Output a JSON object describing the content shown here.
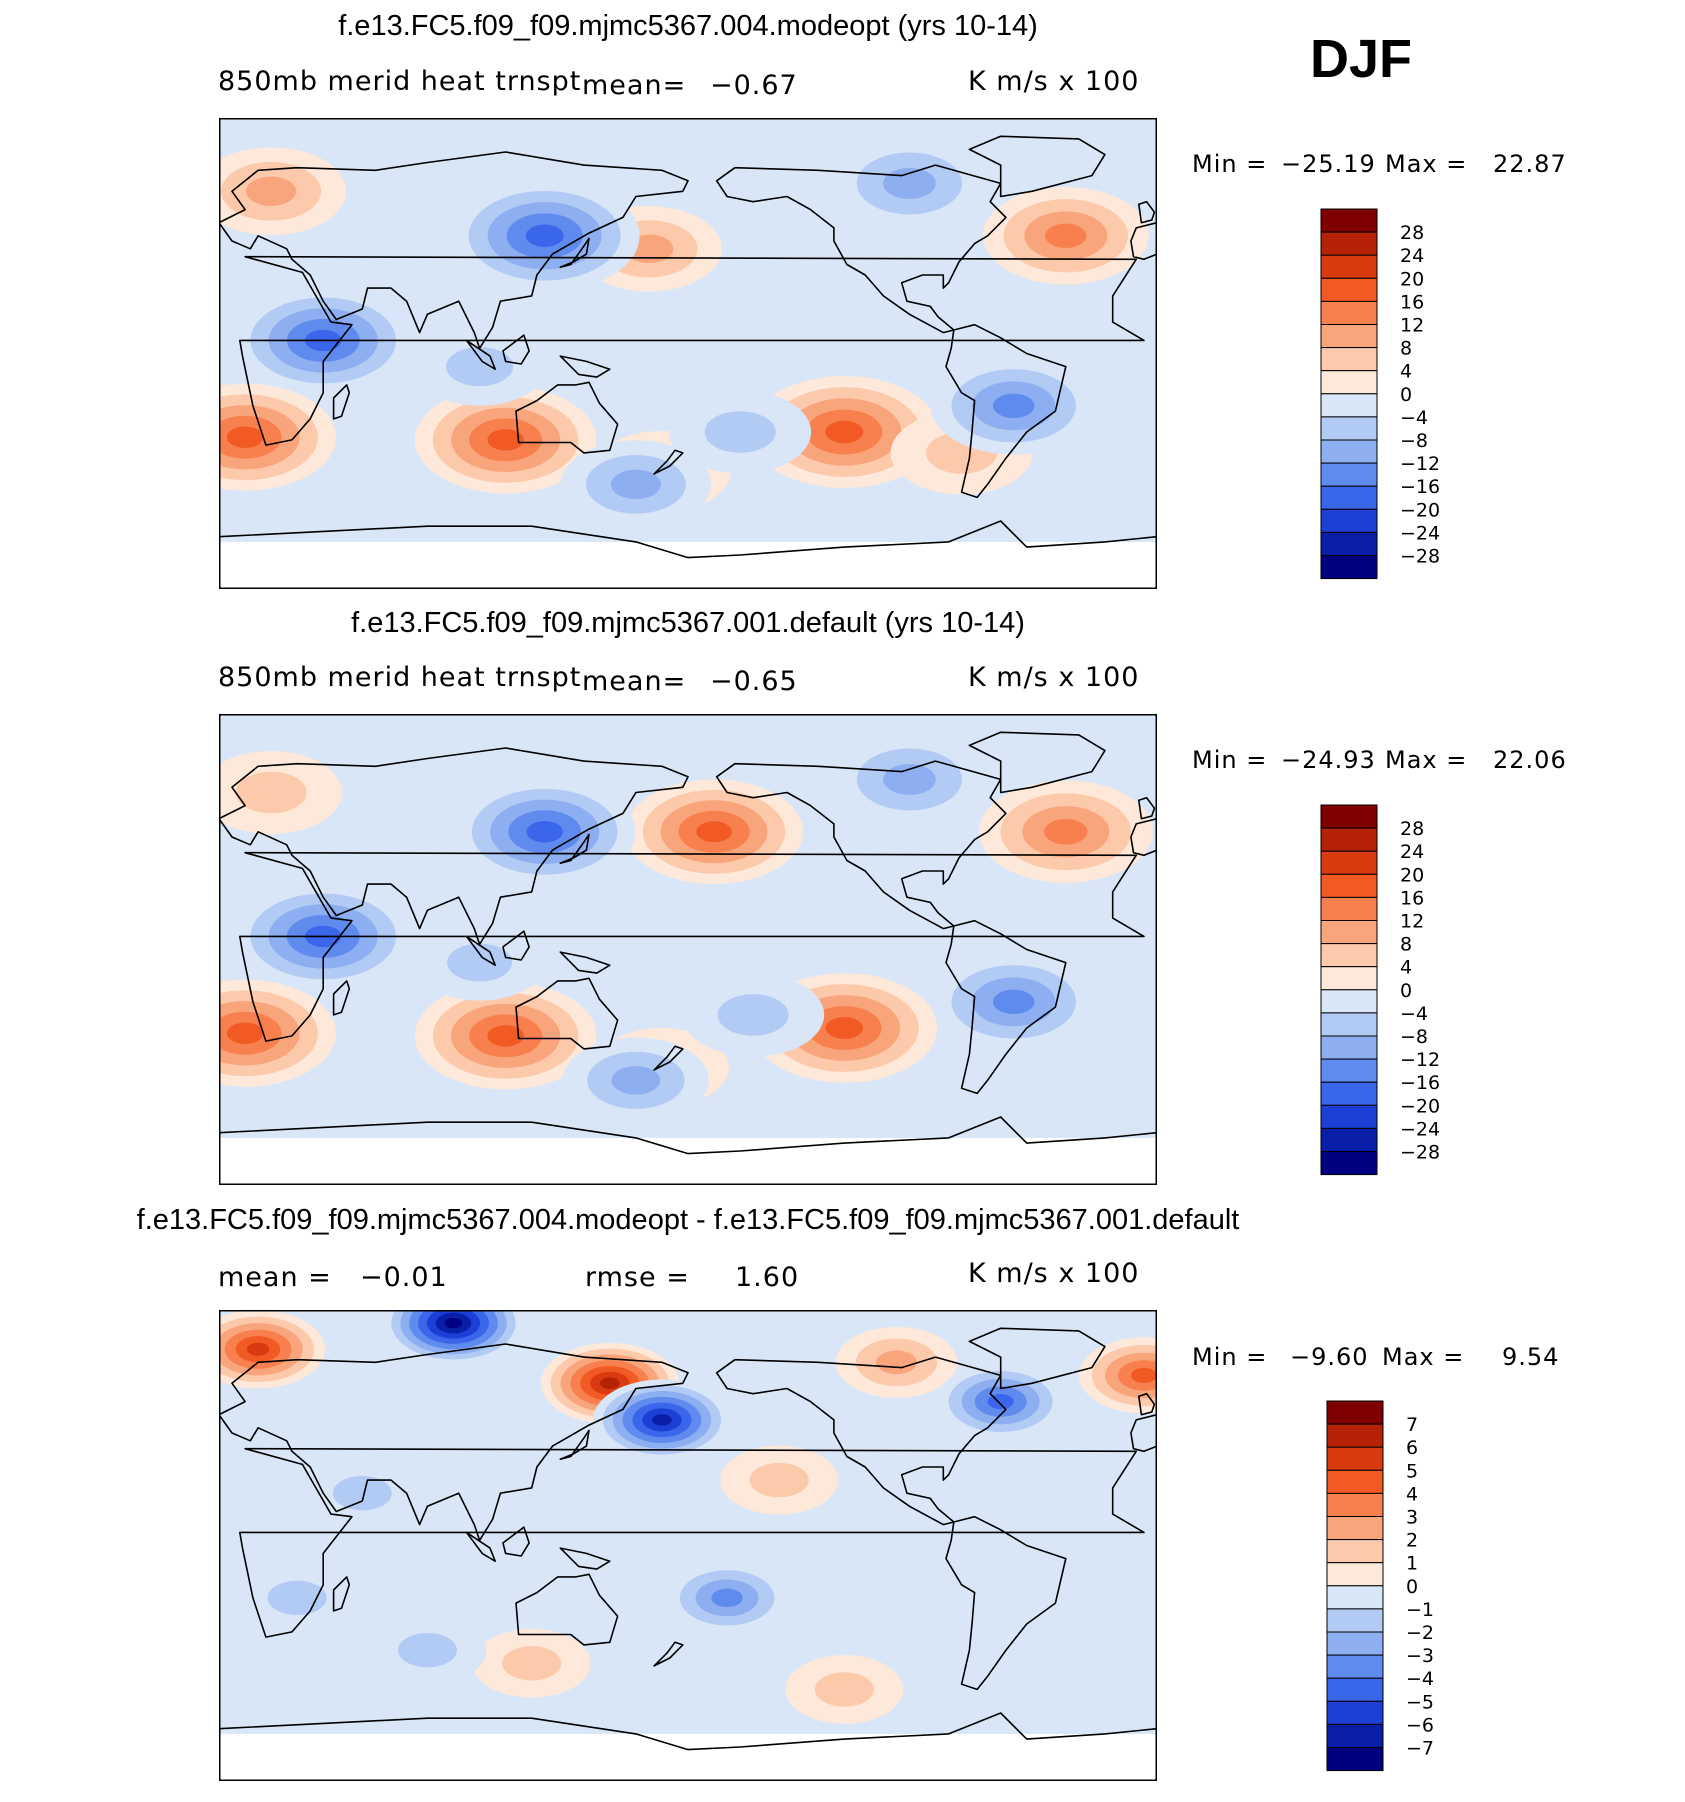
{
  "season": "DJF",
  "panels": [
    {
      "title": "f.e13.FC5.f09_f09.mjmc5367.004.modeopt (yrs 10-14)",
      "variable": "850mb merid heat trnspt",
      "mean_label": "mean=",
      "mean_value": "−0.67",
      "units": "K m/s x 100",
      "min_label": "Min =",
      "min_value": "−25.19",
      "max_label": "Max =",
      "max_value": "22.87"
    },
    {
      "title": "f.e13.FC5.f09_f09.mjmc5367.001.default (yrs 10-14)",
      "variable": "850mb merid heat trnspt",
      "mean_label": "mean=",
      "mean_value": "−0.65",
      "units": "K m/s x 100",
      "min_label": "Min =",
      "min_value": "−24.93",
      "max_label": "Max =",
      "max_value": "22.06"
    },
    {
      "title": "f.e13.FC5.f09_f09.mjmc5367.004.modeopt - f.e13.FC5.f09_f09.mjmc5367.001.default",
      "mean_label": "mean =",
      "mean_value": "−0.01",
      "rmse_label": "rmse =",
      "rmse_value": "1.60",
      "units": "K m/s x 100",
      "min_label": "Min =",
      "min_value": "−9.60",
      "max_label": "Max =",
      "max_value": "9.54"
    }
  ],
  "chart_data": [
    {
      "type": "heatmap",
      "title": "f.e13.FC5.f09_f09.mjmc5367.004.modeopt (yrs 10-14)",
      "variable": "850mb merid heat trnspt",
      "units": "K m/s x 100",
      "mean": -0.67,
      "min": -25.19,
      "max": 22.87,
      "colorbar_levels": [
        "28",
        "24",
        "20",
        "16",
        "12",
        "8",
        "4",
        "0",
        "−4",
        "−8",
        "−12",
        "−16",
        "−20",
        "−24",
        "−28"
      ],
      "colorbar_colors": [
        "#800000",
        "#b52205",
        "#d93a0f",
        "#f25a23",
        "#f8804f",
        "#f9a57c",
        "#fcc9ab",
        "#fde8d9",
        "#d8e6f8",
        "#b2cbf4",
        "#8daef0",
        "#5f8bee",
        "#3a66ec",
        "#1c3fd6",
        "#0a1fa8",
        "#000080"
      ],
      "blobs": [
        {
          "lon": 240,
          "lat": -30,
          "value": 20
        },
        {
          "lon": 110,
          "lat": -33,
          "value": 18
        },
        {
          "lon": 10,
          "lat": -32,
          "value": 18
        },
        {
          "lon": 325,
          "lat": 45,
          "value": 14
        },
        {
          "lon": 165,
          "lat": 40,
          "value": 9
        },
        {
          "lon": 170,
          "lat": -45,
          "value": 7
        },
        {
          "lon": 20,
          "lat": 62,
          "value": 10
        },
        {
          "lon": 285,
          "lat": -38,
          "value": 8
        },
        {
          "lon": 125,
          "lat": 45,
          "value": -20
        },
        {
          "lon": 40,
          "lat": 5,
          "value": -18
        },
        {
          "lon": 265,
          "lat": 65,
          "value": -12
        },
        {
          "lon": 305,
          "lat": -20,
          "value": -14
        },
        {
          "lon": 160,
          "lat": -50,
          "value": -10
        },
        {
          "lon": 200,
          "lat": -30,
          "value": -8
        },
        {
          "lon": 100,
          "lat": -5,
          "value": -6
        }
      ]
    },
    {
      "type": "heatmap",
      "title": "f.e13.FC5.f09_f09.mjmc5367.001.default (yrs 10-14)",
      "variable": "850mb merid heat trnspt",
      "units": "K m/s x 100",
      "mean": -0.65,
      "min": -24.93,
      "max": 22.06,
      "colorbar_levels": [
        "28",
        "24",
        "20",
        "16",
        "12",
        "8",
        "4",
        "0",
        "−4",
        "−8",
        "−12",
        "−16",
        "−20",
        "−24",
        "−28"
      ],
      "colorbar_colors": [
        "#800000",
        "#b52205",
        "#d93a0f",
        "#f25a23",
        "#f8804f",
        "#f9a57c",
        "#fcc9ab",
        "#fde8d9",
        "#d8e6f8",
        "#b2cbf4",
        "#8daef0",
        "#5f8bee",
        "#3a66ec",
        "#1c3fd6",
        "#0a1fa8",
        "#000080"
      ],
      "blobs": [
        {
          "lon": 240,
          "lat": -30,
          "value": 19
        },
        {
          "lon": 110,
          "lat": -33,
          "value": 18
        },
        {
          "lon": 10,
          "lat": -32,
          "value": 18
        },
        {
          "lon": 325,
          "lat": 45,
          "value": 16
        },
        {
          "lon": 190,
          "lat": 45,
          "value": 17
        },
        {
          "lon": 170,
          "lat": -45,
          "value": 6
        },
        {
          "lon": 20,
          "lat": 60,
          "value": 8
        },
        {
          "lon": 125,
          "lat": 45,
          "value": -18
        },
        {
          "lon": 40,
          "lat": 5,
          "value": -18
        },
        {
          "lon": 265,
          "lat": 65,
          "value": -12
        },
        {
          "lon": 305,
          "lat": -20,
          "value": -14
        },
        {
          "lon": 160,
          "lat": -50,
          "value": -9
        },
        {
          "lon": 205,
          "lat": -25,
          "value": -8
        },
        {
          "lon": 100,
          "lat": -5,
          "value": -5
        }
      ]
    },
    {
      "type": "heatmap",
      "title": "f.e13.FC5.f09_f09.mjmc5367.004.modeopt - f.e13.FC5.f09_f09.mjmc5367.001.default",
      "units": "K m/s x 100",
      "mean": -0.01,
      "rmse": 1.6,
      "min": -9.6,
      "max": 9.54,
      "colorbar_levels": [
        "7",
        "6",
        "5",
        "4",
        "3",
        "2",
        "1",
        "0",
        "−1",
        "−2",
        "−3",
        "−4",
        "−5",
        "−6",
        "−7"
      ],
      "colorbar_colors": [
        "#800000",
        "#b52205",
        "#d93a0f",
        "#f25a23",
        "#f8804f",
        "#f9a57c",
        "#fcc9ab",
        "#fde8d9",
        "#d8e6f8",
        "#b2cbf4",
        "#8daef0",
        "#5f8bee",
        "#3a66ec",
        "#1c3fd6",
        "#0a1fa8",
        "#000080"
      ],
      "blobs": [
        {
          "lon": 15,
          "lat": 75,
          "value": 6
        },
        {
          "lon": 150,
          "lat": 62,
          "value": 7
        },
        {
          "lon": 355,
          "lat": 65,
          "value": 5
        },
        {
          "lon": 260,
          "lat": 70,
          "value": 3
        },
        {
          "lon": 90,
          "lat": 85,
          "value": -8
        },
        {
          "lon": 170,
          "lat": 48,
          "value": -7
        },
        {
          "lon": 300,
          "lat": 55,
          "value": -5
        },
        {
          "lon": 195,
          "lat": -20,
          "value": -4
        },
        {
          "lon": 55,
          "lat": 20,
          "value": -2
        },
        {
          "lon": 215,
          "lat": 25,
          "value": 2
        },
        {
          "lon": 120,
          "lat": -45,
          "value": 2
        },
        {
          "lon": 240,
          "lat": -55,
          "value": 2
        },
        {
          "lon": 80,
          "lat": -40,
          "value": -2
        },
        {
          "lon": 30,
          "lat": -20,
          "value": -2
        }
      ]
    }
  ]
}
